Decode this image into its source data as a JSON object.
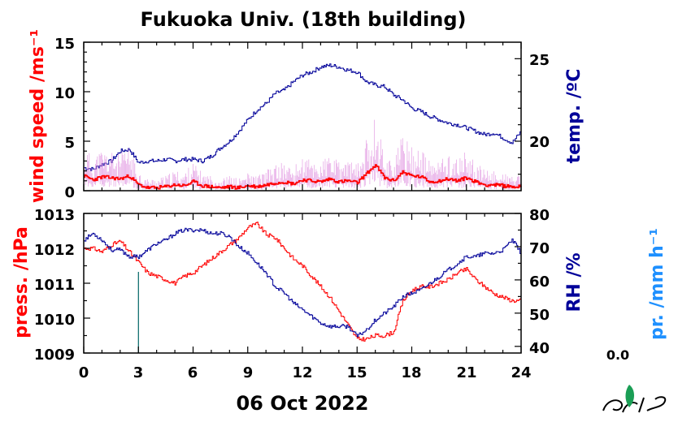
{
  "title": "Fukuoka Univ. (18th building)",
  "date_label": "06 Oct 2022",
  "precip_value": "0.0",
  "colors": {
    "wind": "#ff0000",
    "wind_raw": "#dd88dd",
    "temp": "#000099",
    "pressure": "#ff0000",
    "rh": "#000099",
    "precip": "#1e90ff",
    "precip_bar": "#006666",
    "logo": "#1a9e55"
  },
  "chart_data": [
    {
      "type": "line",
      "panel": "top",
      "ylabel_left": "wind speed /ms⁻¹",
      "ylabel_right": "temp. /ºC",
      "x_ticks": [
        "0",
        "3",
        "6",
        "9",
        "12",
        "15",
        "18",
        "21",
        "24"
      ],
      "xlim": [
        0,
        24
      ],
      "ylim_left": [
        0,
        15
      ],
      "yticks_left": [
        "0",
        "5",
        "10",
        "15"
      ],
      "ylim_right": [
        17,
        26
      ],
      "yticks_right": [
        "20",
        "25"
      ],
      "series": [
        {
          "axis": "right",
          "x": [
            0,
            0.5,
            1,
            1.5,
            2,
            2.5,
            3,
            3.5,
            4,
            4.5,
            5,
            5.5,
            6,
            6.5,
            7,
            7.5,
            8,
            8.5,
            9,
            9.5,
            10,
            10.5,
            11,
            11.5,
            12,
            12.5,
            13,
            13.5,
            14,
            14.5,
            15,
            15.5,
            16,
            16.5,
            17,
            17.5,
            18,
            18.5,
            19,
            19.5,
            20,
            20.5,
            21,
            21.5,
            22,
            22.5,
            23,
            23.5,
            24
          ],
          "y": [
            18.4,
            18.3,
            18.6,
            18.8,
            19.4,
            19.5,
            18.7,
            18.8,
            18.8,
            18.9,
            18.8,
            18.9,
            18.9,
            18.8,
            19.1,
            19.6,
            20.0,
            20.6,
            21.3,
            21.9,
            22.3,
            22.9,
            23.1,
            23.6,
            24.0,
            24.2,
            24.5,
            24.6,
            24.5,
            24.3,
            24.2,
            23.6,
            23.4,
            23.3,
            22.8,
            22.5,
            22.0,
            21.8,
            21.5,
            21.3,
            21.1,
            21.0,
            20.8,
            20.6,
            20.4,
            20.5,
            20.2,
            19.9,
            20.6
          ]
        },
        {
          "axis": "left",
          "x": [
            0,
            0.5,
            1,
            1.5,
            2,
            2.5,
            3,
            3.5,
            4,
            4.5,
            5,
            5.5,
            6,
            6.5,
            7,
            7.5,
            8,
            8.5,
            9,
            9.5,
            10,
            10.5,
            11,
            11.5,
            12,
            12.5,
            13,
            13.5,
            14,
            14.5,
            15,
            15.5,
            16,
            16.5,
            17,
            17.5,
            18,
            18.5,
            19,
            19.5,
            20,
            20.5,
            21,
            21.5,
            22,
            22.5,
            23,
            23.5,
            24
          ],
          "y": [
            1.5,
            1.1,
            1.4,
            1.3,
            1.2,
            1.5,
            0.6,
            0.3,
            0.3,
            0.4,
            0.6,
            0.5,
            0.9,
            0.5,
            0.4,
            0.3,
            0.4,
            0.3,
            0.5,
            0.4,
            0.6,
            0.8,
            0.9,
            0.7,
            1.1,
            1.0,
            0.9,
            1.2,
            0.9,
            1.0,
            0.8,
            1.7,
            2.6,
            1.3,
            1.0,
            1.9,
            1.5,
            1.4,
            0.9,
            1.0,
            1.2,
            1.0,
            1.3,
            0.9,
            0.6,
            0.6,
            0.5,
            0.4,
            0.4
          ]
        }
      ]
    },
    {
      "type": "line",
      "panel": "bottom",
      "ylabel_left": "press. /hPa",
      "ylabel_right": "RH /%",
      "ylabel_far_right": "pr. /mm h⁻¹",
      "x_ticks": [
        "0",
        "3",
        "6",
        "9",
        "12",
        "15",
        "18",
        "21",
        "24"
      ],
      "xlim": [
        0,
        24
      ],
      "ylim_left": [
        1009,
        1013
      ],
      "yticks_left": [
        "1009",
        "1010",
        "1011",
        "1012",
        "1013"
      ],
      "ylim_right": [
        38,
        80
      ],
      "yticks_right": [
        "40",
        "50",
        "60",
        "70",
        "80"
      ],
      "series": [
        {
          "axis": "left",
          "x": [
            0,
            0.5,
            1,
            1.5,
            2,
            2.5,
            3,
            3.5,
            4,
            4.5,
            5,
            5.5,
            6,
            6.5,
            7,
            7.5,
            8,
            8.5,
            9,
            9.5,
            10,
            10.5,
            11,
            11.5,
            12,
            12.5,
            13,
            13.5,
            14,
            14.5,
            15,
            15.5,
            16,
            16.5,
            17,
            17.5,
            18,
            18.5,
            19,
            19.5,
            20,
            20.5,
            21,
            21.5,
            22,
            22.5,
            23,
            23.5,
            24
          ],
          "y": [
            1012.0,
            1012.0,
            1011.9,
            1012.1,
            1012.2,
            1011.9,
            1011.6,
            1011.3,
            1011.2,
            1011.1,
            1011.0,
            1011.2,
            1011.3,
            1011.5,
            1011.7,
            1011.9,
            1012.1,
            1012.3,
            1012.6,
            1012.7,
            1012.4,
            1012.3,
            1012.0,
            1011.7,
            1011.5,
            1011.2,
            1010.9,
            1010.6,
            1010.2,
            1009.8,
            1009.4,
            1009.4,
            1009.5,
            1009.5,
            1009.6,
            1010.5,
            1010.8,
            1010.9,
            1010.9,
            1011.0,
            1011.1,
            1011.3,
            1011.4,
            1011.1,
            1010.9,
            1010.7,
            1010.6,
            1010.5,
            1010.5
          ]
        },
        {
          "axis": "right",
          "x": [
            0,
            0.5,
            1,
            1.5,
            2,
            2.5,
            3,
            3.5,
            4,
            4.5,
            5,
            5.5,
            6,
            6.5,
            7,
            7.5,
            8,
            8.5,
            9,
            9.5,
            10,
            10.5,
            11,
            11.5,
            12,
            12.5,
            13,
            13.5,
            14,
            14.5,
            15,
            15.5,
            16,
            16.5,
            17,
            17.5,
            18,
            18.5,
            19,
            19.5,
            20,
            20.5,
            21,
            21.5,
            22,
            22.5,
            23,
            23.5,
            24
          ],
          "y": [
            72,
            74,
            72,
            69,
            69,
            67,
            67,
            69,
            71,
            72,
            74,
            75,
            75,
            75,
            74,
            74,
            73,
            70,
            68,
            65,
            62,
            58,
            56,
            53,
            51,
            49,
            47,
            46,
            46,
            46,
            43,
            45,
            48,
            50,
            52,
            55,
            56,
            57,
            59,
            61,
            63,
            65,
            67,
            67,
            68,
            68,
            69,
            72,
            68
          ]
        },
        {
          "axis": "precip",
          "x": [
            2.95,
            3.0
          ],
          "y": [
            1,
            1
          ]
        }
      ]
    }
  ]
}
